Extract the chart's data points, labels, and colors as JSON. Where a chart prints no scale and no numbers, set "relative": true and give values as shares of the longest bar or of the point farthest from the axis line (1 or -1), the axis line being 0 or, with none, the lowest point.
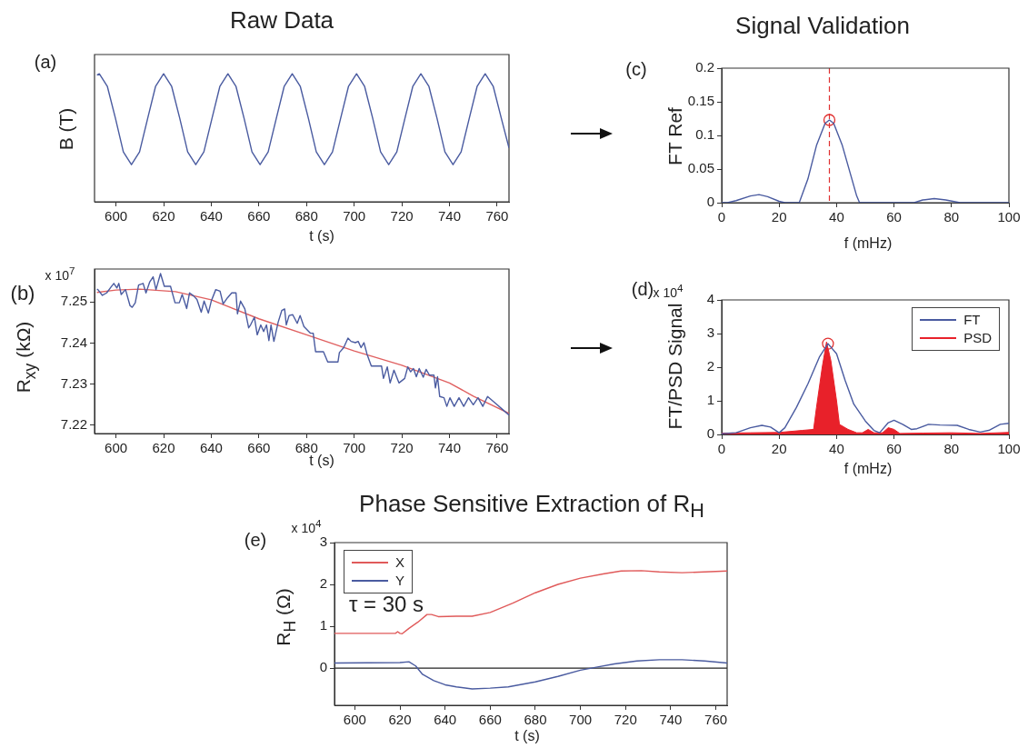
{
  "chart_data": [
    {
      "type": "line",
      "title": "Raw Data",
      "ylabel": "B (T)",
      "xlabel": "t (s)",
      "relative": true,
      "annotations": [
        "(a)"
      ],
      "xlim": [
        591,
        765
      ],
      "xticks": [
        600,
        620,
        640,
        660,
        680,
        700,
        720,
        740,
        760
      ],
      "series": [
        {
          "color": "#4a5ba0",
          "x": [
            592,
            593,
            596.4,
            599.8,
            603.1,
            606.5,
            609.9,
            613.3,
            616.6,
            620,
            623.4,
            626.8,
            630.1,
            633.5,
            636.9,
            640.3,
            643.6,
            647,
            650.4,
            653.8,
            657.1,
            660.5,
            663.9,
            667.3,
            670.6,
            674,
            677.4,
            680.8,
            684.1,
            687.5,
            690.9,
            694.3,
            697.6,
            701,
            704.4,
            707.8,
            711.1,
            714.5,
            717.9,
            721.3,
            724.6,
            728,
            731.4,
            734.8,
            738.1,
            741.5,
            744.9,
            748.3,
            751.6,
            755,
            758.4,
            761.8,
            765
          ],
          "values": [
            0.99,
            1,
            0.9,
            0.65,
            0.39,
            0.29,
            0.39,
            0.65,
            0.9,
            1,
            0.9,
            0.65,
            0.39,
            0.29,
            0.39,
            0.65,
            0.9,
            1,
            0.9,
            0.65,
            0.39,
            0.29,
            0.39,
            0.65,
            0.9,
            1,
            0.9,
            0.65,
            0.39,
            0.29,
            0.39,
            0.65,
            0.9,
            1,
            0.9,
            0.65,
            0.39,
            0.29,
            0.39,
            0.65,
            0.9,
            1,
            0.9,
            0.65,
            0.39,
            0.29,
            0.39,
            0.65,
            0.9,
            1,
            0.9,
            0.65,
            0.42
          ]
        }
      ]
    },
    {
      "type": "line",
      "ylabel": "R$_{xy}$  (kΩ)",
      "xlabel": "t (s)",
      "annotations": [
        "(b)",
        "x 10$^{7}$"
      ],
      "xlim": [
        591,
        765
      ],
      "xticks": [
        600,
        620,
        640,
        660,
        680,
        700,
        720,
        740,
        760
      ],
      "ylim": [
        7.218,
        7.258
      ],
      "yticks": [
        7.22,
        7.23,
        7.24,
        7.25
      ],
      "series": [
        {
          "color": "#4a5ba0",
          "x": [
            592,
            592.4,
            594.3,
            596.1,
            597.9,
            599.1,
            600.4,
            601.2,
            602.2,
            604,
            605.9,
            606.8,
            608.1,
            609.5,
            611.4,
            612.6,
            614.2,
            615.6,
            616.8,
            618.7,
            620.3,
            622.9,
            624.8,
            626.6,
            627.8,
            629.7,
            630.9,
            632.7,
            634,
            635.8,
            637,
            638.8,
            640,
            641.9,
            643.7,
            645,
            646.8,
            648.6,
            650.4,
            651,
            652.3,
            654.1,
            655.7,
            656.5,
            658.1,
            659.3,
            660.8,
            662,
            663.2,
            664.2,
            665.1,
            666.3,
            668.1,
            669.6,
            670.8,
            671.5,
            672.7,
            674.2,
            676.1,
            677.3,
            678.9,
            681.6,
            682.8,
            683.8,
            687.1,
            688.9,
            693.2,
            693.8,
            695.6,
            697.4,
            698.7,
            700.5,
            701.7,
            702.9,
            704.1,
            705.4,
            707.2,
            711.5,
            712.3,
            713.9,
            715.1,
            716.7,
            718.8,
            721.2,
            722.5,
            723.7,
            724.9,
            726.1,
            727.3,
            729,
            730.2,
            731.6,
            733.5,
            734.1,
            735,
            735.9,
            737.7,
            738.9,
            740.2,
            742,
            744,
            746,
            748,
            750,
            752,
            754,
            756,
            758,
            760,
            762,
            765
          ],
          "values": [
            7.2531,
            7.253,
            7.2516,
            7.2522,
            7.2536,
            7.2545,
            7.2534,
            7.2545,
            7.2518,
            7.253,
            7.2491,
            7.2487,
            7.2498,
            7.2541,
            7.2545,
            7.2522,
            7.2549,
            7.2561,
            7.253,
            7.2569,
            7.2538,
            7.2538,
            7.2498,
            7.2498,
            7.2518,
            7.2484,
            7.2522,
            7.2514,
            7.2506,
            7.2475,
            7.2502,
            7.2473,
            7.2502,
            7.253,
            7.2526,
            7.2495,
            7.251,
            7.2522,
            7.2522,
            7.2471,
            7.2502,
            7.2483,
            7.2437,
            7.2444,
            7.2463,
            7.242,
            7.2444,
            7.2428,
            7.2444,
            7.2406,
            7.2444,
            7.2404,
            7.2451,
            7.2479,
            7.2483,
            7.2444,
            7.2467,
            7.2469,
            7.2448,
            7.2467,
            7.244,
            7.2424,
            7.2424,
            7.2379,
            7.2379,
            7.2354,
            7.2354,
            7.2377,
            7.2389,
            7.2412,
            7.2404,
            7.2401,
            7.2404,
            7.2389,
            7.2401,
            7.2373,
            7.2344,
            7.2344,
            7.2314,
            7.2342,
            7.2303,
            7.2334,
            7.2303,
            7.2314,
            7.2342,
            7.233,
            7.2338,
            7.2318,
            7.2338,
            7.2317,
            7.2336,
            7.2322,
            7.2322,
            7.2291,
            7.2318,
            7.227,
            7.2267,
            7.2246,
            7.2267,
            7.2246,
            7.2267,
            7.2246,
            7.2267,
            7.225,
            7.2267,
            7.2246,
            7.227,
            7.226,
            7.225,
            7.224,
            7.2225
          ]
        },
        {
          "color": "#e06060",
          "x": [
            592,
            600,
            610,
            625,
            640,
            660,
            680,
            700,
            720,
            740,
            750,
            765
          ],
          "values": [
            7.2523,
            7.2529,
            7.2531,
            7.2525,
            7.2505,
            7.2459,
            7.242,
            7.2381,
            7.2346,
            7.2303,
            7.2271,
            7.2229
          ]
        }
      ]
    },
    {
      "type": "line",
      "title": "Signal Validation",
      "ylabel": "FT Ref",
      "xlabel": "f (mHz)",
      "annotations": [
        "(c)"
      ],
      "xlim": [
        0,
        100
      ],
      "xticks": [
        0,
        20,
        40,
        60,
        80,
        100
      ],
      "ylim": [
        0,
        0.2
      ],
      "yticks": [
        0,
        0.05,
        0.1,
        0.15,
        0.2
      ],
      "ref_lines": [
        {
          "axis": "x",
          "value": 37.5,
          "color": "#e03030",
          "line_style": "dashed"
        }
      ],
      "series": [
        {
          "color": "#4a5ba0",
          "x": [
            0,
            2,
            5,
            10,
            13,
            16,
            20,
            22,
            27,
            30,
            33,
            36,
            37.5,
            39,
            42,
            45,
            47,
            48,
            60,
            67,
            70,
            74,
            78,
            83,
            100
          ],
          "values": [
            0,
            0,
            0.003,
            0.01,
            0.012,
            0.009,
            0.002,
            0,
            0,
            0.035,
            0.085,
            0.118,
            0.123,
            0.118,
            0.085,
            0.04,
            0.01,
            0,
            0,
            0,
            0.004,
            0.006,
            0.004,
            0,
            0
          ]
        },
        {
          "type": "scatter",
          "marker": "circle",
          "color": "#e03030",
          "x": [
            37.5
          ],
          "values": [
            0.123
          ]
        }
      ]
    },
    {
      "type": "line",
      "ylabel": "FT/PSD Signal",
      "xlabel": "f (mHz)",
      "annotations": [
        "(d)",
        "x 10$^{4}$"
      ],
      "legend": "top right",
      "xlim": [
        0,
        100
      ],
      "xticks": [
        0,
        20,
        40,
        60,
        80,
        100
      ],
      "ylim": [
        0,
        4
      ],
      "yticks": [
        0,
        1,
        2,
        3,
        4
      ],
      "series": [
        {
          "name": "FT",
          "color": "#4a5ba0",
          "x": [
            0,
            5,
            10,
            14,
            17,
            20,
            22,
            26,
            30,
            34,
            37,
            40,
            43,
            46,
            50,
            53,
            55,
            58,
            60,
            63,
            66,
            68,
            72,
            76,
            82,
            86,
            90,
            93,
            97,
            100
          ],
          "values": [
            0.02,
            0.05,
            0.2,
            0.27,
            0.22,
            0.05,
            0.2,
            0.8,
            1.5,
            2.3,
            2.7,
            2.4,
            1.6,
            0.9,
            0.4,
            0.12,
            0.05,
            0.35,
            0.42,
            0.3,
            0.15,
            0.17,
            0.3,
            0.28,
            0.27,
            0.15,
            0.07,
            0.12,
            0.3,
            0.33
          ]
        },
        {
          "name": "PSD",
          "type": "area",
          "color": "#e8212a",
          "x": [
            0,
            10,
            20,
            28,
            32,
            33,
            35,
            36.5,
            38,
            40,
            41,
            44,
            47,
            49,
            51,
            53,
            56,
            58,
            60,
            62,
            70,
            80,
            90,
            100
          ],
          "values": [
            0.04,
            0.05,
            0.06,
            0.12,
            0.15,
            0.8,
            2,
            2.75,
            2.2,
            1,
            0.3,
            0.15,
            0.05,
            0.05,
            0.15,
            0.05,
            0.05,
            0.2,
            0.15,
            0.03,
            0.04,
            0.05,
            0.03,
            0.06
          ]
        },
        {
          "type": "scatter",
          "marker": "circle",
          "color": "#e03030",
          "x": [
            37
          ],
          "values": [
            2.7
          ]
        }
      ]
    },
    {
      "type": "line",
      "title": "Phase Sensitive Extraction of R$_{H}$",
      "ylabel": "R$_{H}$ (Ω)",
      "xlabel": "t (s)",
      "annotations": [
        "(e)",
        "x 10$^{4}$",
        "τ = 30 s"
      ],
      "legend": "top left",
      "xlim": [
        591,
        765
      ],
      "xticks": [
        600,
        620,
        640,
        660,
        680,
        700,
        720,
        740,
        760
      ],
      "ylim": [
        -0.89,
        3
      ],
      "yticks": [
        0,
        1,
        2,
        3
      ],
      "ref_lines": [
        {
          "axis": "y",
          "value": 0,
          "color": "#222222",
          "line_style": "solid"
        }
      ],
      "series": [
        {
          "name": "X",
          "color": "#e05a5a",
          "x": [
            591,
            618,
            619,
            620,
            621,
            624,
            628,
            632,
            634,
            637,
            645,
            652,
            660,
            670,
            680,
            690,
            700,
            710,
            718,
            727,
            735,
            745,
            755,
            765
          ],
          "values": [
            0.83,
            0.83,
            0.87,
            0.83,
            0.82,
            0.95,
            1.1,
            1.28,
            1.28,
            1.23,
            1.24,
            1.24,
            1.33,
            1.55,
            1.8,
            2,
            2.15,
            2.25,
            2.32,
            2.33,
            2.3,
            2.28,
            2.3,
            2.32
          ]
        },
        {
          "name": "Y",
          "color": "#4a5ba0",
          "x": [
            591,
            620,
            624,
            627,
            630,
            635,
            640,
            645,
            652,
            660,
            668,
            680,
            690,
            700,
            707,
            715,
            725,
            735,
            745,
            755,
            765
          ],
          "values": [
            0.12,
            0.13,
            0.15,
            0.05,
            -0.15,
            -0.3,
            -0.4,
            -0.45,
            -0.5,
            -0.48,
            -0.45,
            -0.33,
            -0.2,
            -0.05,
            0.02,
            0.1,
            0.17,
            0.2,
            0.2,
            0.17,
            0.12
          ]
        }
      ]
    }
  ]
}
